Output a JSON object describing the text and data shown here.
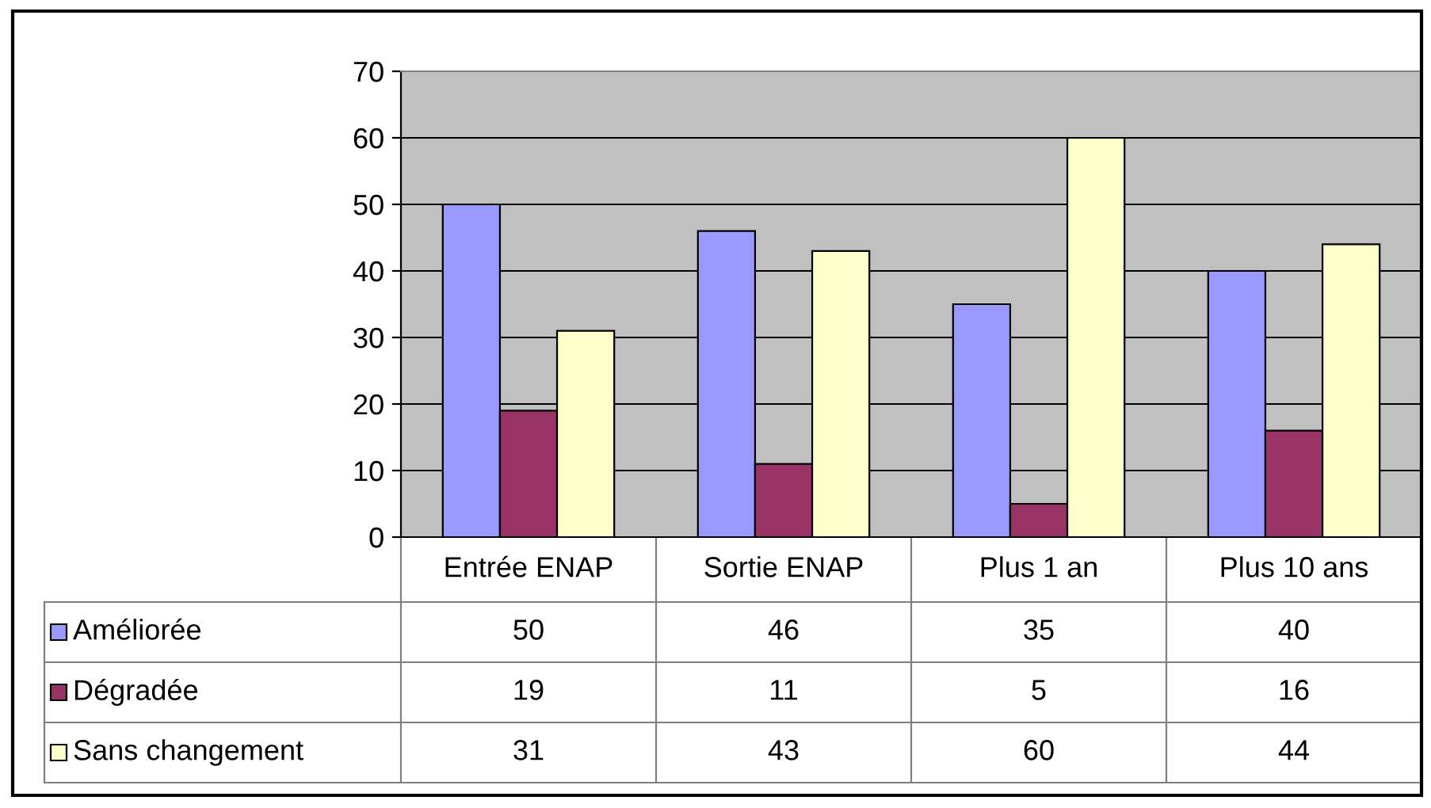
{
  "chart_data": {
    "type": "bar",
    "categories": [
      "Entrée ENAP",
      "Sortie ENAP",
      "Plus 1 an",
      "Plus 10 ans"
    ],
    "series": [
      {
        "name": "Améliorée",
        "color": "#9999ff",
        "values": [
          50,
          46,
          35,
          40
        ]
      },
      {
        "name": "Dégradée",
        "color": "#993366",
        "values": [
          19,
          11,
          5,
          16
        ]
      },
      {
        "name": "Sans changement",
        "color": "#ffffcc",
        "values": [
          31,
          43,
          60,
          44
        ]
      }
    ],
    "ylim": [
      0,
      70
    ],
    "yticks": [
      0,
      10,
      20,
      30,
      40,
      50,
      60,
      70
    ],
    "grid": "y",
    "legend": "bottom left",
    "data_labels": true
  }
}
